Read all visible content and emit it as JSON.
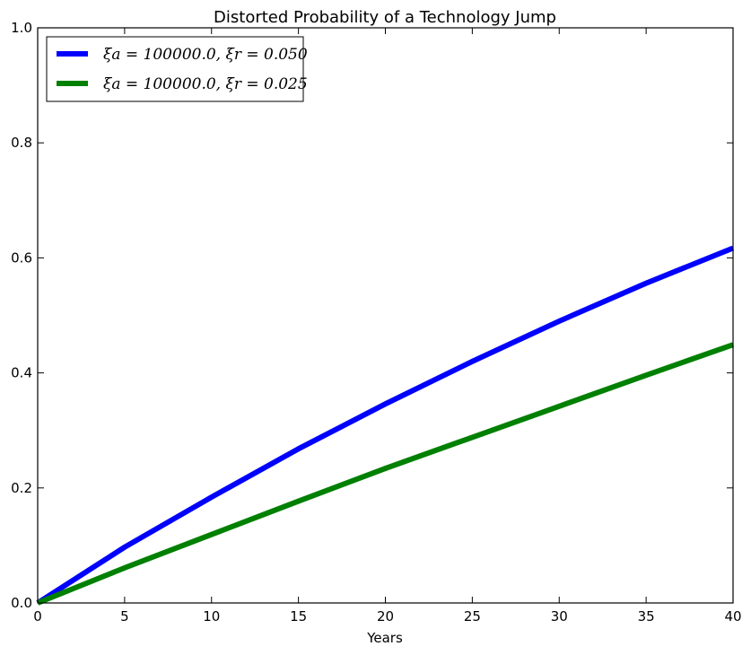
{
  "chart_data": {
    "type": "line",
    "title": "Distorted Probability of a Technology Jump",
    "xlabel": "Years",
    "ylabel": "",
    "xlim": [
      0,
      40
    ],
    "ylim": [
      0,
      1.0
    ],
    "xticks": [
      "0",
      "5",
      "10",
      "15",
      "20",
      "25",
      "30",
      "35",
      "40"
    ],
    "yticks": [
      "0.0",
      "0.2",
      "0.4",
      "0.6",
      "0.8",
      "1.0"
    ],
    "grid": false,
    "legend_position": "top-left",
    "x": [
      0,
      5,
      10,
      15,
      20,
      25,
      30,
      35,
      40
    ],
    "series": [
      {
        "name": "ξa = 100000.0, ξr = 0.050",
        "color": "#0000ff",
        "values": [
          0.0,
          0.097,
          0.184,
          0.268,
          0.346,
          0.42,
          0.49,
          0.556,
          0.617
        ]
      },
      {
        "name": "ξa = 100000.0, ξr = 0.025",
        "color": "#008000",
        "values": [
          0.0,
          0.061,
          0.119,
          0.177,
          0.234,
          0.288,
          0.342,
          0.396,
          0.449
        ]
      }
    ]
  }
}
